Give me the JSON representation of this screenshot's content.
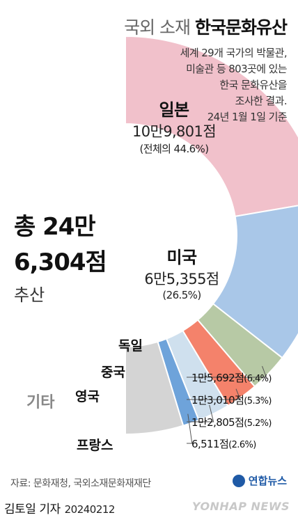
{
  "header": {
    "title_light": "국외 소재",
    "title_bold": "한국문화유산",
    "desc_lines": [
      "세계 29개 국가의 박물관,",
      "미술관 등 803곳에 있는",
      "한국 문화유산을",
      "조사한 결과.",
      "24년 1월 1일 기준"
    ]
  },
  "total": {
    "line1": "총 24만",
    "line2": "6,304점",
    "line3": "추산"
  },
  "chart_data": {
    "type": "pie",
    "title": "국외 소재 한국문화유산",
    "categories": [
      "일본",
      "미국",
      "독일",
      "중국",
      "영국",
      "프랑스",
      "기타"
    ],
    "values": [
      109801,
      65355,
      15692,
      13010,
      12805,
      6511,
      23130
    ],
    "display_values": [
      "10만9,801점",
      "6만5,355점",
      "1만5,692점",
      "1만3,010점",
      "1만2,805점",
      "6,511점",
      ""
    ],
    "percents": [
      "(전체의 44.6%)",
      "(26.5%)",
      "(6.4%)",
      "(5.3%)",
      "(5.2%)",
      "(2.6%)",
      ""
    ],
    "colors": [
      "#f1c1cb",
      "#a9c7e8",
      "#b7c9a5",
      "#f4826b",
      "#cfe0ee",
      "#6ea3da",
      "#d4d4d4"
    ],
    "total_label": "총 24만 6,304점"
  },
  "labels": {
    "japan_pct": "(전체의 44.6%)"
  },
  "source": "자료: 문화재청, 국외소재문화재재단",
  "logo": "연합뉴스",
  "footer": {
    "reporter": "김토일 기자",
    "date": "20240212",
    "watermark": "YONHAP NEWS"
  }
}
